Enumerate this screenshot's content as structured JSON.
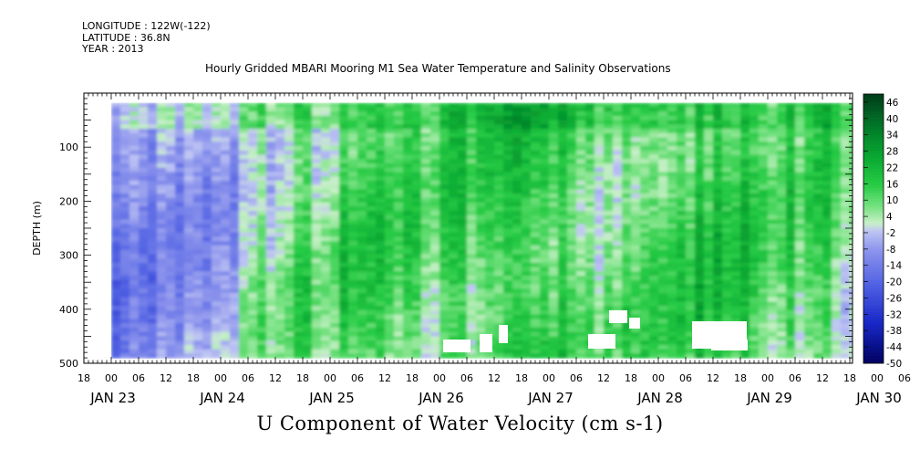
{
  "header": {
    "longitude": "LONGITUDE : 122W(-122)",
    "latitude": "LATITUDE : 36.8N",
    "year": "YEAR : 2013",
    "title": "Hourly Gridded MBARI Mooring M1 Sea Water Temperature and Salinity Observations"
  },
  "chart_data": {
    "type": "heatmap",
    "title": "Hourly Gridded MBARI Mooring M1 Sea Water Temperature and Salinity Observations",
    "xlabel": "U Component of Water Velocity (cm s-1)",
    "ylabel": "DEPTH (m)",
    "y_reversed": true,
    "ylim": [
      0,
      500
    ],
    "y_ticks": [
      100,
      200,
      300,
      400,
      500
    ],
    "y_tick_labels": [
      "100",
      "200",
      "300",
      "400",
      "500"
    ],
    "x_time_ticks": [
      "18",
      "00",
      "06",
      "12",
      "18",
      "00",
      "06",
      "12",
      "18",
      "00",
      "06",
      "12",
      "18",
      "00",
      "06",
      "12",
      "18",
      "00",
      "06",
      "12",
      "18",
      "00",
      "06",
      "12",
      "18",
      "00",
      "06",
      "12",
      "18",
      "00",
      "06",
      "12"
    ],
    "x_day_labels": [
      "JAN 23",
      "JAN 24",
      "JAN 25",
      "JAN 26",
      "JAN 27",
      "JAN 28",
      "JAN 29",
      "JAN 30"
    ],
    "colorbar": {
      "labels": [
        "46",
        "40",
        "34",
        "28",
        "22",
        "16",
        "10",
        "4",
        "-2",
        "-8",
        "-14",
        "-20",
        "-26",
        "-32",
        "-38",
        "-44",
        "-50"
      ],
      "range": [
        -50,
        49
      ]
    },
    "data_coverage_depth_m": [
      18,
      490
    ],
    "profiles_u_cm_s": {
      "JAN 23 00": -10,
      "JAN 23 12": -12,
      "JAN 24 00": -6,
      "JAN 24 12": 8,
      "JAN 25 00": 10,
      "JAN 25 12": 12,
      "JAN 26 00": 10,
      "JAN 26 12": 16,
      "JAN 27 00": 18,
      "JAN 27 12": 6,
      "JAN 28 00": 12,
      "JAN 28 12": 20,
      "JAN 29 00": 8,
      "JAN 29 12": 16,
      "JAN 30 00": -10,
      "JAN 30 12": -8
    }
  }
}
